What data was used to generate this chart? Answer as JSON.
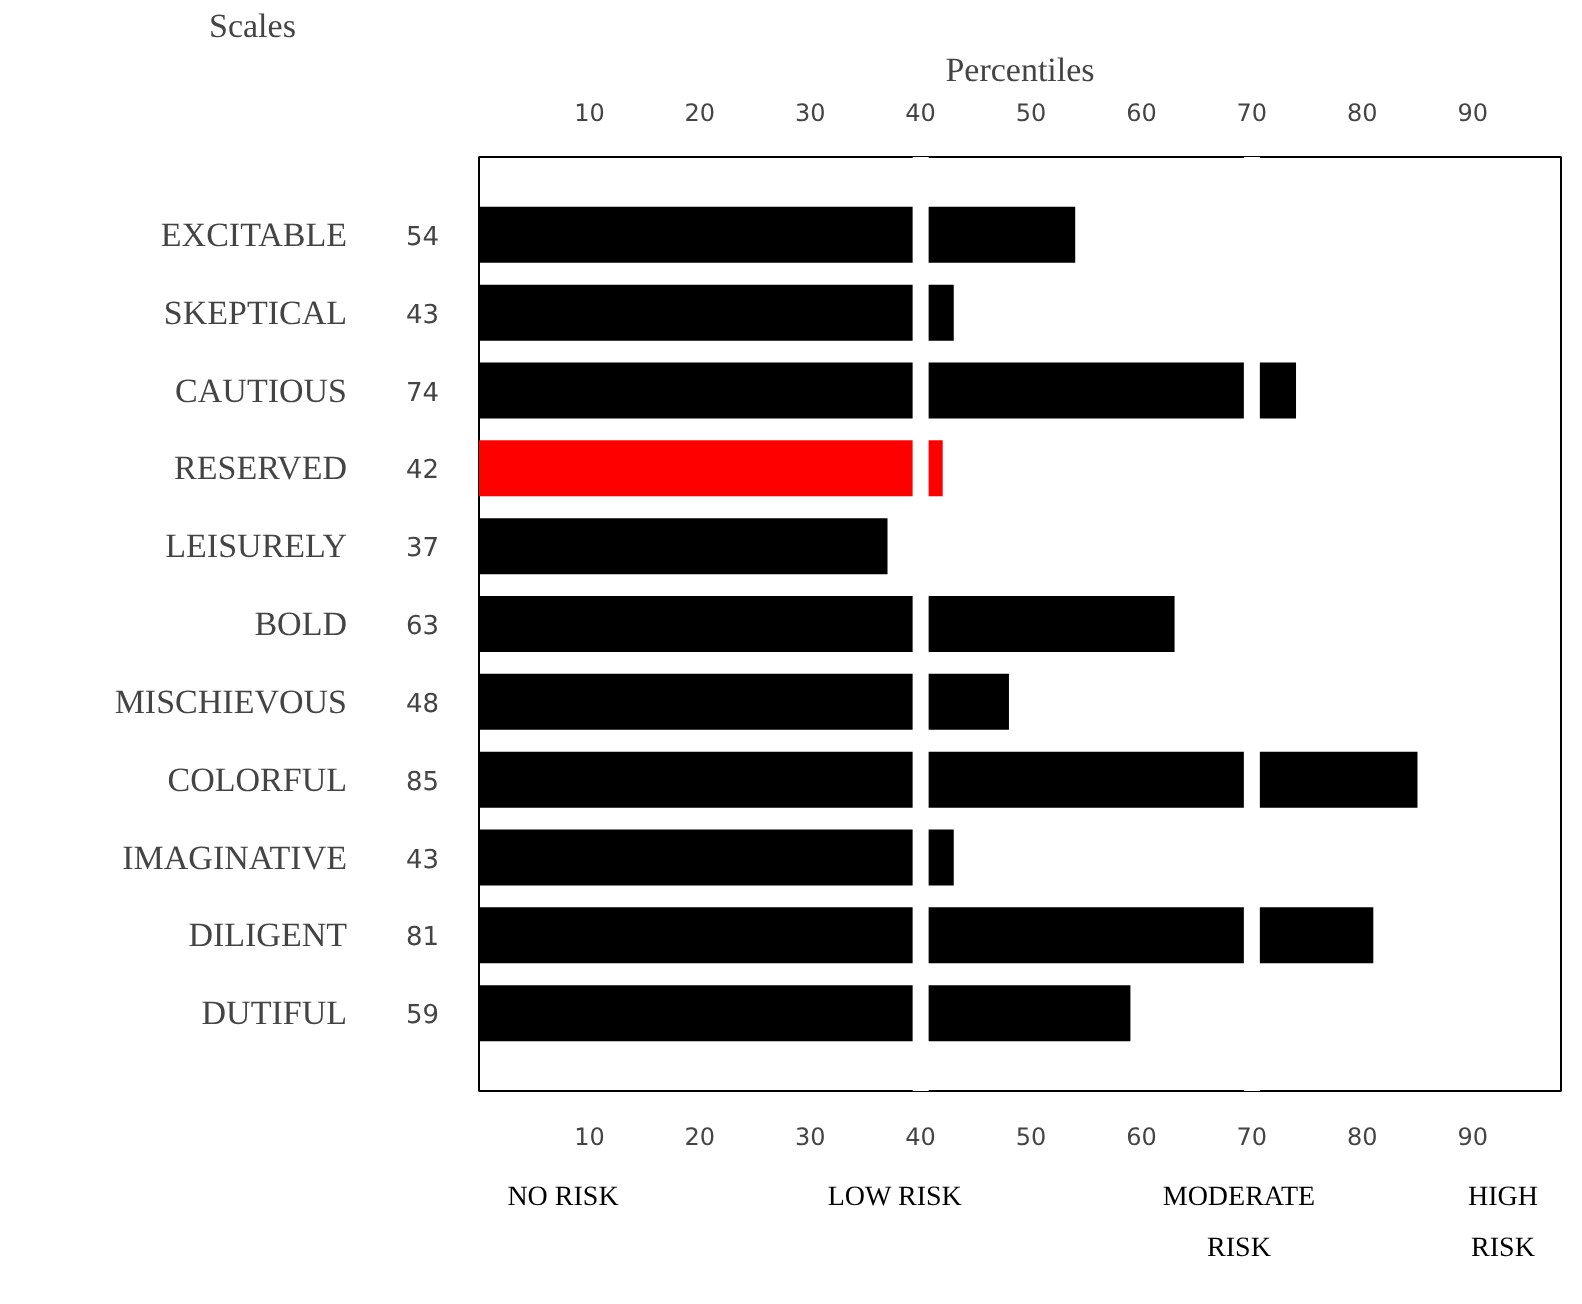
{
  "chart_data": {
    "type": "bar",
    "orientation": "horizontal",
    "ylabel": "Scales",
    "x2label": "Percentiles",
    "categories": [
      "EXCITABLE",
      "SKEPTICAL",
      "CAUTIOUS",
      "RESERVED",
      "LEISURELY",
      "BOLD",
      "MISCHIEVOUS",
      "COLORFUL",
      "IMAGINATIVE",
      "DILIGENT",
      "DUTIFUL"
    ],
    "values": [
      54,
      43,
      74,
      42,
      37,
      63,
      48,
      85,
      43,
      81,
      59
    ],
    "colors": [
      "#000000",
      "#000000",
      "#000000",
      "#ff0000",
      "#000000",
      "#000000",
      "#000000",
      "#000000",
      "#000000",
      "#000000",
      "#000000"
    ],
    "data_labels": true,
    "xlim": [
      0,
      98
    ],
    "xticks": [
      10,
      20,
      30,
      40,
      50,
      60,
      70,
      80,
      90
    ],
    "x2lim": [
      0,
      98
    ],
    "x2ticks": [
      10,
      20,
      30,
      40,
      50,
      60,
      70,
      80,
      90
    ],
    "ref_lines": [
      {
        "axis": "x",
        "value": 40,
        "color": "#ffffff"
      },
      {
        "axis": "x",
        "value": 70,
        "color": "#ffffff"
      }
    ],
    "grid": false,
    "annotations": [
      "NO RISK",
      "LOW RISK",
      "MODERATE\nRISK",
      "HIGH\nRISK"
    ]
  }
}
